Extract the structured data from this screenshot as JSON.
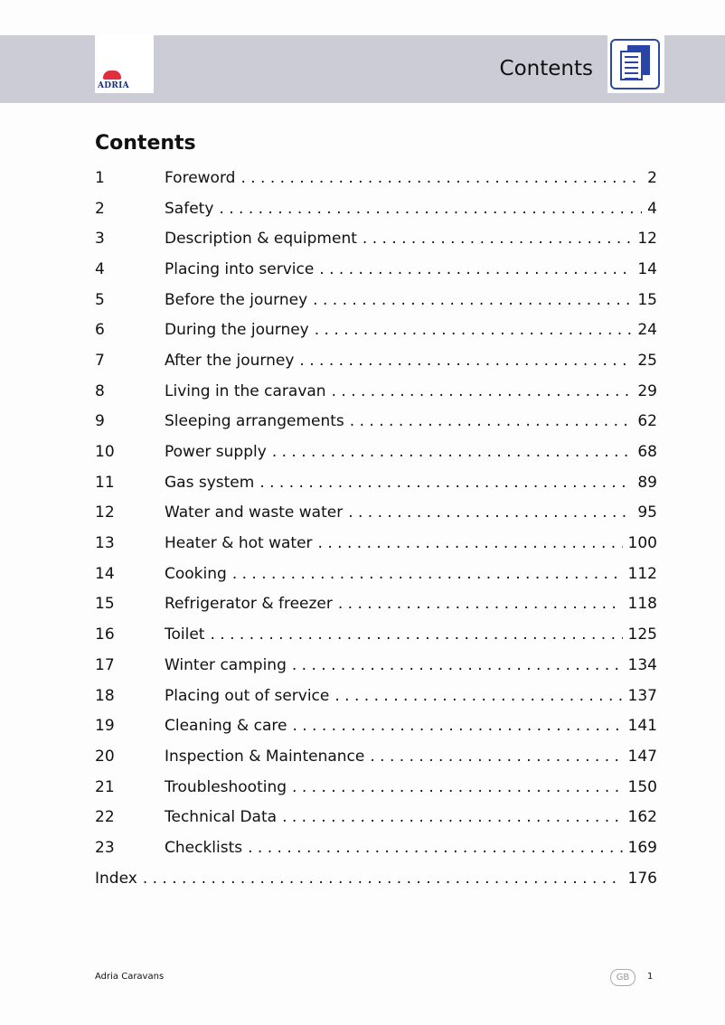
{
  "header": {
    "logo_text": "ADRIA",
    "title": "Contents",
    "icon": "document-pages-icon"
  },
  "heading": "Contents",
  "entries": [
    {
      "num": "1",
      "title": "Foreword",
      "page": "2"
    },
    {
      "num": "2",
      "title": "Safety",
      "page": "4"
    },
    {
      "num": "3",
      "title": "Description & equipment",
      "page": "12"
    },
    {
      "num": "4",
      "title": "Placing into service",
      "page": "14"
    },
    {
      "num": "5",
      "title": "Before the journey",
      "page": "15"
    },
    {
      "num": "6",
      "title": "During the journey",
      "page": "24"
    },
    {
      "num": "7",
      "title": "After the journey",
      "page": "25"
    },
    {
      "num": "8",
      "title": "Living in the caravan",
      "page": "29"
    },
    {
      "num": "9",
      "title": "Sleeping arrangements",
      "page": "62"
    },
    {
      "num": "10",
      "title": "Power supply",
      "page": "68"
    },
    {
      "num": "11",
      "title": "Gas system",
      "page": "89"
    },
    {
      "num": "12",
      "title": "Water and waste water",
      "page": "95"
    },
    {
      "num": "13",
      "title": "Heater & hot water",
      "page": "100"
    },
    {
      "num": "14",
      "title": "Cooking",
      "page": "112"
    },
    {
      "num": "15",
      "title": "Refrigerator & freezer",
      "page": "118"
    },
    {
      "num": "16",
      "title": "Toilet",
      "page": "125"
    },
    {
      "num": "17",
      "title": "Winter camping",
      "page": "134"
    },
    {
      "num": "18",
      "title": "Placing out of service",
      "page": "137"
    },
    {
      "num": "19",
      "title": "Cleaning & care",
      "page": "141"
    },
    {
      "num": "20",
      "title": "Inspection & Maintenance",
      "page": "147"
    },
    {
      "num": "21",
      "title": "Troubleshooting",
      "page": "150"
    },
    {
      "num": "22",
      "title": "Technical Data",
      "page": "162"
    },
    {
      "num": "23",
      "title": "Checklists",
      "page": "169"
    }
  ],
  "index": {
    "title": "Index",
    "page": "176"
  },
  "footer": {
    "publisher": "Adria Caravans",
    "language": "GB",
    "page": "1"
  }
}
